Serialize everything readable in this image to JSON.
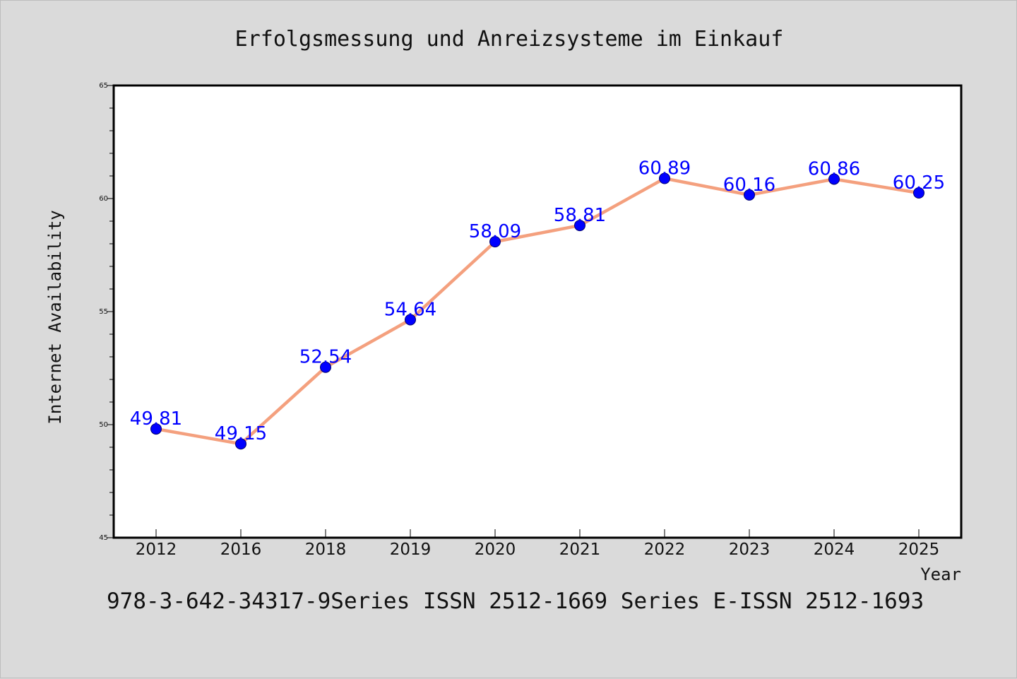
{
  "colors": {
    "background": "#dadada",
    "plot_background": "#ffffff",
    "line": "#f4a07e",
    "marker": "#0000ff",
    "data_label": "#0000ff"
  },
  "footer": "978-3-642-34317-9Series ISSN 2512-1669 Series E-ISSN 2512-1693",
  "chart_data": {
    "type": "line",
    "title": "Erfolgsmessung und Anreizsysteme im Einkauf",
    "xlabel": "Year",
    "ylabel": "Internet Availability",
    "categories": [
      "2012",
      "2016",
      "2018",
      "2019",
      "2020",
      "2021",
      "2022",
      "2023",
      "2024",
      "2025"
    ],
    "series": [
      {
        "values": [
          49.81,
          49.15,
          52.54,
          54.64,
          58.09,
          58.81,
          60.89,
          60.16,
          60.86,
          60.25
        ]
      }
    ],
    "data_labels": [
      "49.81",
      "49.15",
      "52.54",
      "54.64",
      "58.09",
      "58.81",
      "60.89",
      "60.16",
      "60.86",
      "60.25"
    ],
    "ylim": [
      45,
      65
    ],
    "yticks": [
      45,
      50,
      55,
      60,
      65
    ],
    "grid": false,
    "legend": "none"
  }
}
